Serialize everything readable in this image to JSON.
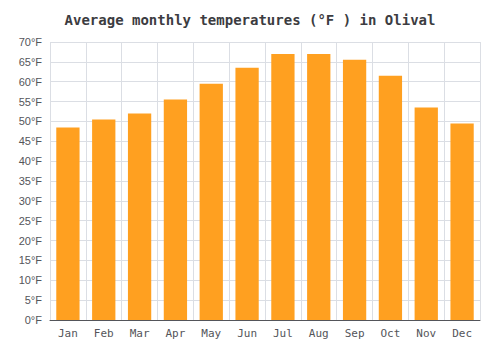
{
  "chart_data": {
    "type": "bar",
    "title": "Average monthly temperatures (°F ) in Olival",
    "categories": [
      "Jan",
      "Feb",
      "Mar",
      "Apr",
      "May",
      "Jun",
      "Jul",
      "Aug",
      "Sep",
      "Oct",
      "Nov",
      "Dec"
    ],
    "values": [
      48.5,
      50.5,
      52,
      55.5,
      59.5,
      63.5,
      67,
      67,
      65.5,
      61.5,
      53.5,
      49.5
    ],
    "color": "#FFA020",
    "ylim": [
      0,
      70
    ],
    "yticks": [
      {
        "value": 0,
        "label": "0°F"
      },
      {
        "value": 5,
        "label": "5°F"
      },
      {
        "value": 10,
        "label": "10°F"
      },
      {
        "value": 15,
        "label": "15°F"
      },
      {
        "value": 20,
        "label": "20°F"
      },
      {
        "value": 25,
        "label": "25°F"
      },
      {
        "value": 30,
        "label": "30°F"
      },
      {
        "value": 35,
        "label": "35°F"
      },
      {
        "value": 40,
        "label": "40°F"
      },
      {
        "value": 45,
        "label": "45°F"
      },
      {
        "value": 50,
        "label": "50°F"
      },
      {
        "value": 55,
        "label": "55°F"
      },
      {
        "value": 60,
        "label": "60°F"
      },
      {
        "value": 65,
        "label": "65°F"
      },
      {
        "value": 70,
        "label": "70°F"
      }
    ],
    "grid": true
  }
}
